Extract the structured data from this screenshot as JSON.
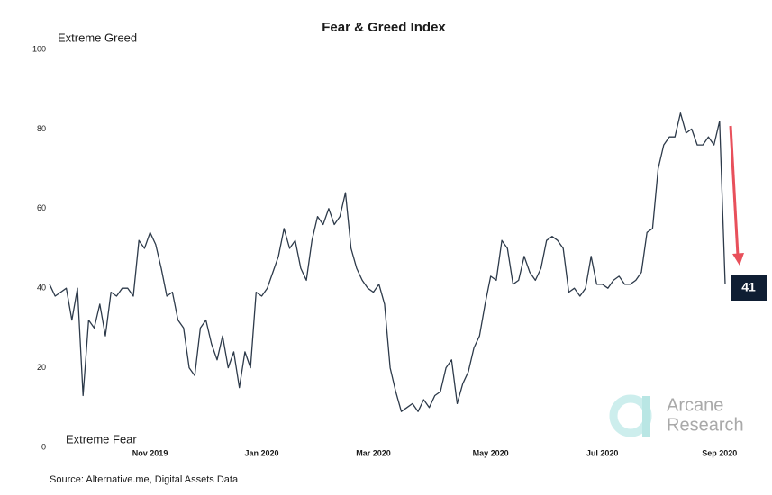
{
  "chart_data": {
    "type": "line",
    "title": "Fear & Greed Index",
    "top_label": "Extreme Greed",
    "bottom_label": "Extreme Fear",
    "source": "Source: Alternative.me, Digital Assets Data",
    "annotation": "41",
    "watermark": [
      "Arcane",
      "Research"
    ],
    "color": "#2d3a4a",
    "ylim": [
      0,
      100
    ],
    "yticks": [
      0,
      20,
      40,
      60,
      80,
      100
    ],
    "grid": false,
    "categories": [
      null,
      null,
      null,
      null,
      null,
      null,
      null,
      null,
      null,
      null,
      null,
      null,
      null,
      null,
      null,
      null,
      null,
      null,
      "Nov 2019",
      null,
      null,
      null,
      null,
      null,
      null,
      null,
      null,
      null,
      null,
      null,
      null,
      null,
      null,
      null,
      null,
      null,
      null,
      null,
      "Jan 2020",
      null,
      null,
      null,
      null,
      null,
      null,
      null,
      null,
      null,
      null,
      null,
      null,
      null,
      null,
      null,
      null,
      null,
      null,
      null,
      "Mar 2020",
      null,
      null,
      null,
      null,
      null,
      null,
      null,
      null,
      null,
      null,
      null,
      null,
      null,
      null,
      null,
      null,
      null,
      null,
      null,
      null,
      "May 2020",
      null,
      null,
      null,
      null,
      null,
      null,
      null,
      null,
      null,
      null,
      null,
      null,
      null,
      null,
      null,
      null,
      null,
      null,
      null,
      "Jul 2020",
      null,
      null,
      null,
      null,
      null,
      null,
      null,
      null,
      null,
      null,
      null,
      null,
      null,
      null,
      null,
      null,
      null,
      null,
      null,
      null,
      "Sep 2020",
      null
    ],
    "values": [
      41,
      38,
      39,
      40,
      32,
      40,
      13,
      32,
      30,
      36,
      28,
      39,
      38,
      40,
      40,
      38,
      52,
      50,
      54,
      51,
      45,
      38,
      39,
      32,
      30,
      20,
      18,
      30,
      32,
      26,
      22,
      28,
      20,
      24,
      15,
      24,
      20,
      39,
      38,
      40,
      44,
      48,
      55,
      50,
      52,
      45,
      42,
      52,
      58,
      56,
      60,
      56,
      58,
      64,
      50,
      45,
      42,
      40,
      39,
      41,
      36,
      20,
      14,
      9,
      10,
      11,
      9,
      12,
      10,
      13,
      14,
      20,
      22,
      11,
      16,
      19,
      25,
      28,
      36,
      43,
      42,
      52,
      50,
      41,
      42,
      48,
      44,
      42,
      45,
      52,
      53,
      52,
      50,
      39,
      40,
      38,
      40,
      48,
      41,
      41,
      40,
      42,
      43,
      41,
      41,
      42,
      44,
      54,
      55,
      70,
      76,
      78,
      78,
      84,
      79,
      80,
      76,
      76,
      78,
      76,
      82,
      41
    ]
  }
}
